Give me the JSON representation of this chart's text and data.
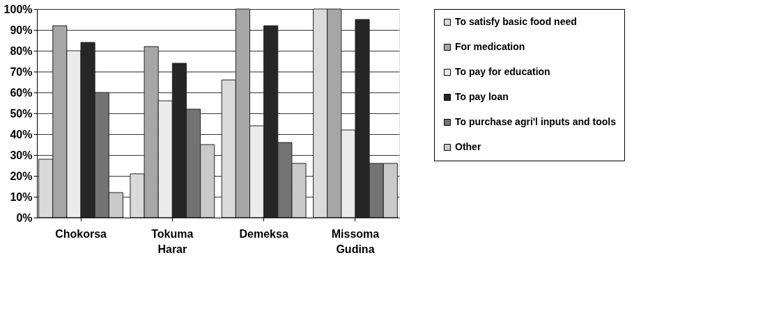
{
  "chart_data": {
    "type": "bar",
    "categories": [
      "Chokorsa",
      "Tokuma Harar",
      "Demeksa",
      "Missoma Gudina"
    ],
    "series": [
      {
        "name": "To satisfy basic food need",
        "color": "#dadada",
        "values": [
          28,
          21,
          66,
          100
        ]
      },
      {
        "name": "For medication",
        "color": "#a6a6a6",
        "values": [
          92,
          82,
          100,
          100
        ]
      },
      {
        "name": "To pay for education",
        "color": "#ebebeb",
        "values": [
          80,
          56,
          44,
          42
        ]
      },
      {
        "name": "To pay loan",
        "color": "#262626",
        "values": [
          84,
          74,
          92,
          95
        ]
      },
      {
        "name": "To purchase agri'l inputs and tools",
        "color": "#737373",
        "values": [
          60,
          52,
          36,
          26
        ]
      },
      {
        "name": "Other",
        "color": "#c9c9c9",
        "values": [
          12,
          35,
          26,
          26
        ]
      }
    ],
    "ylim": [
      0,
      100
    ],
    "yticks": [
      {
        "value": 0,
        "label": "0%"
      },
      {
        "value": 10,
        "label": "10%"
      },
      {
        "value": 20,
        "label": "20%"
      },
      {
        "value": 30,
        "label": "30%"
      },
      {
        "value": 40,
        "label": "40%"
      },
      {
        "value": 50,
        "label": "50%"
      },
      {
        "value": 60,
        "label": "60%"
      },
      {
        "value": 70,
        "label": "70%"
      },
      {
        "value": 80,
        "label": "80%"
      },
      {
        "value": 90,
        "label": "90%"
      },
      {
        "value": 100,
        "label": "100%"
      }
    ],
    "grid": "y",
    "legend": "right"
  }
}
